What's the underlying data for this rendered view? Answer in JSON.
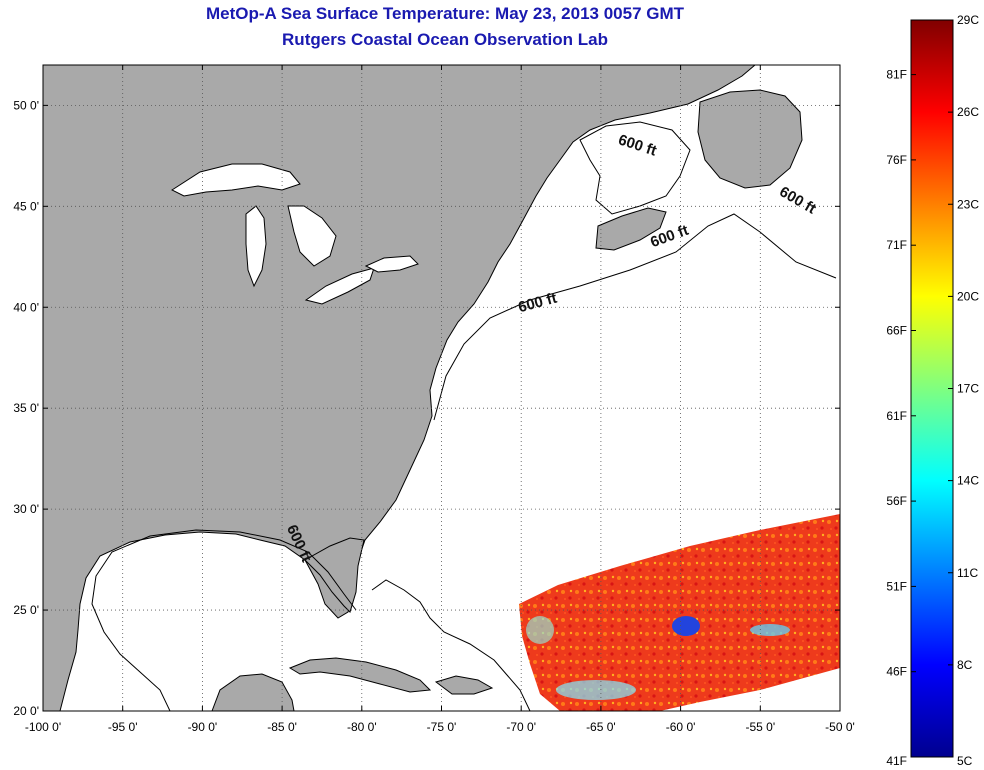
{
  "title": "MetOp-A Sea Surface Temperature:  May 23, 2013 0057 GMT",
  "subtitle": "Rutgers Coastal Ocean Observation Lab",
  "map": {
    "lon_range": [
      -100,
      -50
    ],
    "lat_range": [
      20,
      52
    ],
    "lon_ticks": [
      -100,
      -95,
      -90,
      -85,
      -80,
      -75,
      -70,
      -65,
      -60,
      -55,
      -50
    ],
    "lon_tick_labels": [
      "-100 0'",
      "-95 0'",
      "-90 0'",
      "-85 0'",
      "-80 0'",
      "-75 0'",
      "-70 0'",
      "-65 0'",
      "-60 0'",
      "-55 0'",
      "-50 0'"
    ],
    "lat_ticks": [
      20,
      25,
      30,
      35,
      40,
      45,
      50
    ],
    "lat_tick_labels": [
      "20 0'",
      "25 0'",
      "30 0'",
      "35 0'",
      "40 0'",
      "45 0'",
      "50 0'"
    ],
    "grid": true,
    "land_color": "#a9a9a9",
    "ocean_color": "#ffffff",
    "contour_labels": [
      {
        "text": "600 ft",
        "lon": -62.8,
        "lat": 47.8,
        "rot": 18
      },
      {
        "text": "600 ft",
        "lon": -52.8,
        "lat": 45.1,
        "rot": 30
      },
      {
        "text": "600 ft",
        "lon": -60.6,
        "lat": 43.3,
        "rot": -20
      },
      {
        "text": "600 ft",
        "lon": -68.9,
        "lat": 40.0,
        "rot": -15
      },
      {
        "text": "600 ft",
        "lon": -84.2,
        "lat": 28.2,
        "rot": 65
      }
    ]
  },
  "colorbar": {
    "celsius_labels": [
      "29C",
      "26C",
      "23C",
      "20C",
      "17C",
      "14C",
      "11C",
      "8C",
      "5C"
    ],
    "celsius_values": [
      29,
      26,
      23,
      20,
      17,
      14,
      11,
      8,
      5
    ],
    "fahrenheit_labels": [
      "81F",
      "76F",
      "71F",
      "66F",
      "61F",
      "56F",
      "51F",
      "46F",
      "41F"
    ],
    "fahrenheit_values": [
      81,
      76,
      71,
      66,
      61,
      56,
      51,
      46,
      41
    ],
    "range_c": [
      5,
      29
    ]
  }
}
